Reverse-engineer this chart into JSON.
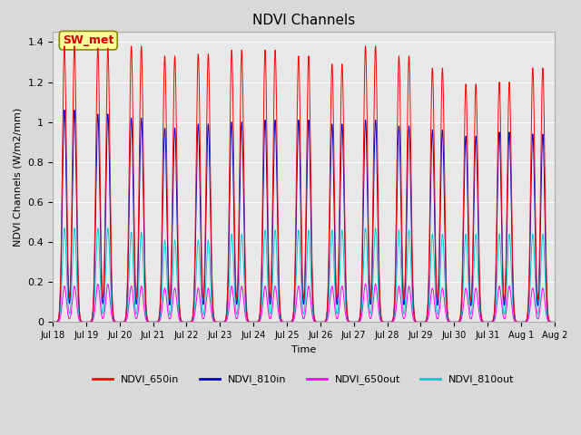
{
  "title": "NDVI Channels",
  "ylabel": "NDVI Channels (W/m2/mm)",
  "xlabel": "Time",
  "ylim": [
    0.0,
    1.45
  ],
  "yticks": [
    0.0,
    0.2,
    0.4,
    0.6,
    0.8,
    1.0,
    1.2,
    1.4
  ],
  "colors": {
    "NDVI_650in": "#ff0000",
    "NDVI_810in": "#0000cc",
    "NDVI_650out": "#ff00ff",
    "NDVI_810out": "#00cccc"
  },
  "peak_heights_650in": [
    1.38,
    1.37,
    1.38,
    1.33,
    1.34,
    1.36,
    1.36,
    1.33,
    1.29,
    1.38,
    1.33,
    1.27,
    1.19,
    1.2,
    1.27
  ],
  "peak_heights_810in": [
    1.06,
    1.04,
    1.02,
    0.97,
    0.99,
    1.0,
    1.01,
    1.01,
    0.99,
    1.01,
    0.98,
    0.96,
    0.93,
    0.95,
    0.94
  ],
  "peak_heights_650out": [
    0.18,
    0.19,
    0.18,
    0.17,
    0.17,
    0.18,
    0.18,
    0.18,
    0.18,
    0.19,
    0.18,
    0.17,
    0.17,
    0.18,
    0.17
  ],
  "peak_heights_810out": [
    0.47,
    0.47,
    0.45,
    0.41,
    0.41,
    0.44,
    0.46,
    0.46,
    0.46,
    0.47,
    0.46,
    0.44,
    0.44,
    0.44,
    0.44
  ],
  "xtick_labels": [
    "Jul 18",
    "Jul 19",
    "Jul 20",
    "Jul 21",
    "Jul 22",
    "Jul 23",
    "Jul 24",
    "Jul 25",
    "Jul 26",
    "Jul 27",
    "Jul 28",
    "Jul 29",
    "Jul 30",
    "Jul 31",
    "Aug 1",
    "Aug 2"
  ],
  "num_days": 15,
  "annotation_text": "SW_met",
  "annotation_color": "#cc0000",
  "annotation_bg": "#ffff99",
  "background_color": "#d9d9d9",
  "plot_bg": "#e8e8e8",
  "grid_color": "#ffffff",
  "legend_labels": [
    "NDVI_650in",
    "NDVI_810in",
    "NDVI_650out",
    "NDVI_810out"
  ]
}
